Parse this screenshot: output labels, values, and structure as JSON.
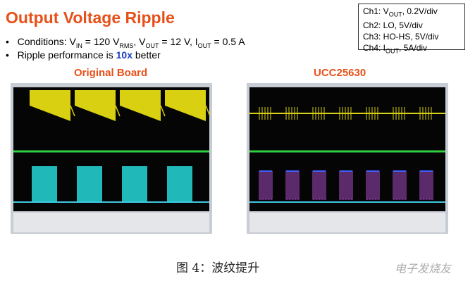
{
  "header": {
    "title": "Output Voltage Ripple"
  },
  "bullets": [
    [
      [
        "Conditions:  V",
        "IN"
      ],
      [
        " = 120 V",
        "RMS"
      ],
      [
        ", V",
        "OUT"
      ],
      [
        " = 12 V, I",
        "OUT"
      ],
      [
        " = 0.5 A"
      ]
    ],
    {
      "before": "Ripple performance is ",
      "emphasis": "10x",
      "after": " better"
    }
  ],
  "legend": [
    [
      [
        "Ch1: V",
        "OUT"
      ],
      [
        ", 0.2V/div"
      ]
    ],
    [
      [
        "Ch2: LO, 5V/div"
      ]
    ],
    [
      [
        "Ch3: HO-HS, 5V/div"
      ]
    ],
    [
      [
        "Ch4: I",
        "OUT"
      ],
      [
        ", 5A/div"
      ]
    ]
  ],
  "scopes": [
    {
      "label": "Original Board"
    },
    {
      "label": "UCC25630"
    }
  ],
  "caption": "图 4：波纹提升",
  "watermark": "电子发烧友"
}
